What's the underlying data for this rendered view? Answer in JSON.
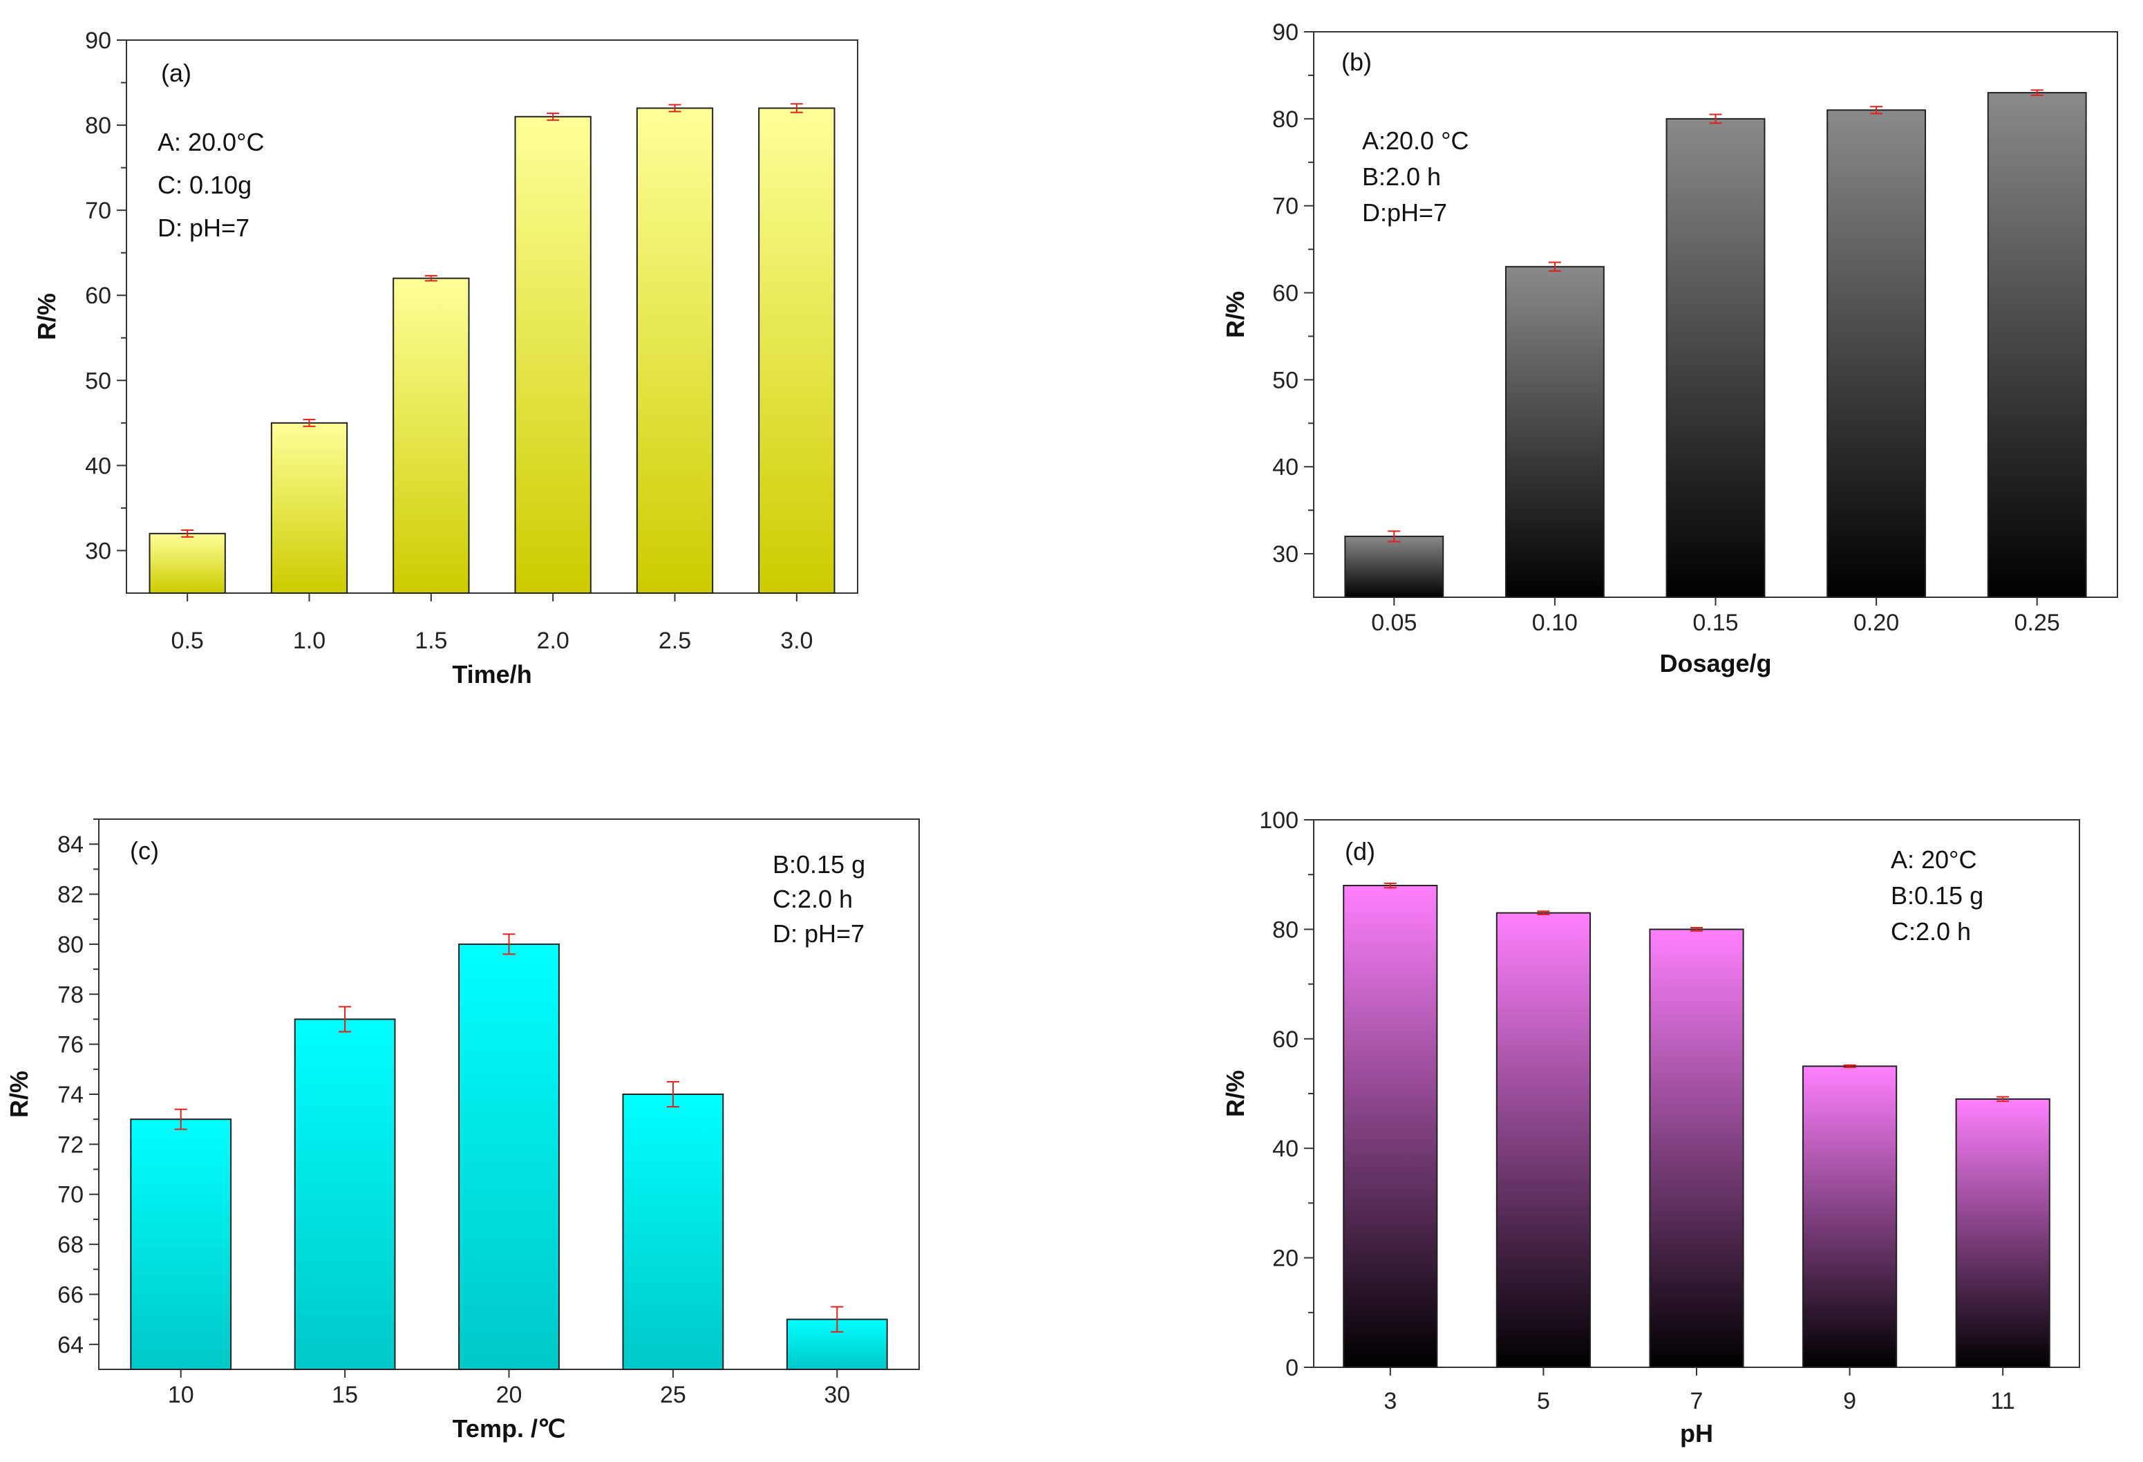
{
  "chart_data": [
    {
      "type": "bar",
      "panel": "(a)",
      "categories": [
        "0.5",
        "1.0",
        "1.5",
        "2.0",
        "2.5",
        "3.0"
      ],
      "values": [
        32,
        45,
        62,
        81,
        82,
        82
      ],
      "errors": [
        0.4,
        0.4,
        0.3,
        0.4,
        0.4,
        0.5
      ],
      "xlabel": "Time/h",
      "ylabel": "R/%",
      "ylim": [
        25,
        90
      ],
      "yticks": [
        30,
        40,
        50,
        60,
        70,
        80,
        90
      ],
      "annotations": [
        "A: 20.0°C",
        "C: 0.10g",
        "D: pH=7"
      ],
      "bar_top_color": "#ffff99",
      "bar_bottom_color": "#cccc00",
      "error_color": "#e0201b"
    },
    {
      "type": "bar",
      "panel": "(b)",
      "categories": [
        "0.05",
        "0.10",
        "0.15",
        "0.20",
        "0.25"
      ],
      "values": [
        32,
        63,
        80,
        81,
        83
      ],
      "errors": [
        0.6,
        0.5,
        0.5,
        0.4,
        0.3
      ],
      "xlabel": "Dosage/g",
      "ylabel": "R/%",
      "ylim": [
        25,
        90
      ],
      "yticks": [
        30,
        40,
        50,
        60,
        70,
        80,
        90
      ],
      "annotations": [
        "A:20.0 °C",
        "B:2.0 h",
        "D:pH=7"
      ],
      "bar_top_color": "#8a8a8a",
      "bar_bottom_color": "#000000",
      "error_color": "#e0201b"
    },
    {
      "type": "bar",
      "panel": "(c)",
      "categories": [
        "10",
        "15",
        "20",
        "25",
        "30"
      ],
      "values": [
        73,
        77,
        80,
        74,
        65
      ],
      "errors": [
        0.4,
        0.5,
        0.4,
        0.5,
        0.5
      ],
      "xlabel": "Temp. /℃",
      "ylabel": "R/%",
      "ylim": [
        63,
        85
      ],
      "yticks": [
        64,
        66,
        68,
        70,
        72,
        74,
        76,
        78,
        80,
        82,
        84
      ],
      "annotations": [
        "B:0.15 g",
        "C:2.0 h",
        "D: pH=7"
      ],
      "bar_top_color": "#00ffff",
      "bar_bottom_color": "#00c8c8",
      "error_color": "#e0201b"
    },
    {
      "type": "bar",
      "panel": "(d)",
      "categories": [
        "3",
        "5",
        "7",
        "9",
        "11"
      ],
      "values": [
        88,
        83,
        80,
        55,
        49
      ],
      "errors": [
        0.4,
        0.3,
        0.3,
        0.2,
        0.4
      ],
      "xlabel": "pH",
      "ylabel": "R/%",
      "ylim": [
        0,
        100
      ],
      "yticks": [
        0,
        20,
        40,
        60,
        80,
        100
      ],
      "annotations": [
        "A: 20°C",
        "B:0.15 g",
        "C:2.0 h"
      ],
      "bar_top_color": "#ff80ff",
      "bar_bottom_color": "#000000",
      "error_color": "#e0201b"
    }
  ]
}
